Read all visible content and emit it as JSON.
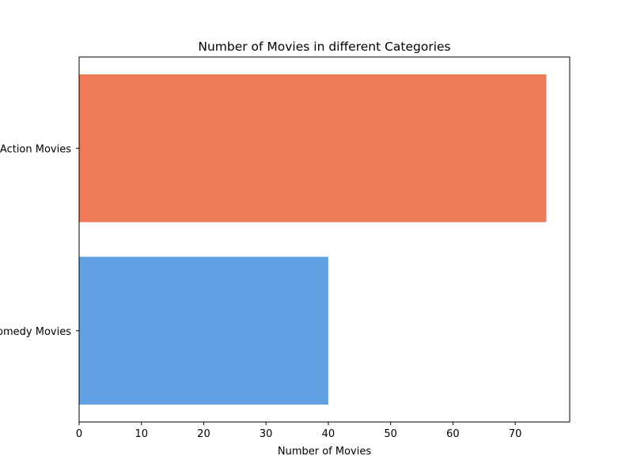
{
  "chart_data": {
    "type": "bar",
    "orientation": "horizontal",
    "title": "Number of Movies in different Categories",
    "xlabel": "Number of Movies",
    "ylabel": "",
    "categories": [
      "Action Movies",
      "Comedy Movies"
    ],
    "values": [
      75,
      40
    ],
    "colors": [
      "#EF7A58",
      "#62A0E4"
    ],
    "xlim": [
      0,
      78.75
    ],
    "xticks": [
      0,
      10,
      20,
      30,
      40,
      50,
      60,
      70
    ],
    "grid": false,
    "legend": "none"
  }
}
